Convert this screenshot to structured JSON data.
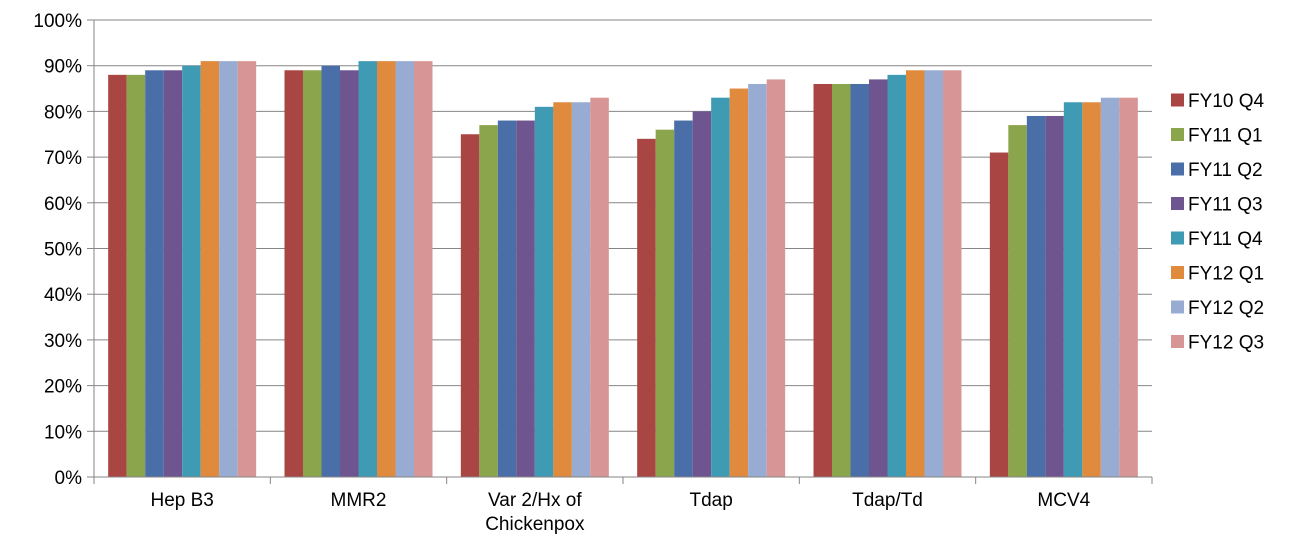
{
  "chart_data": {
    "type": "bar",
    "title": "",
    "xlabel": "",
    "ylabel": "",
    "ylim": [
      0,
      100
    ],
    "y_ticks": [
      "0%",
      "10%",
      "20%",
      "30%",
      "40%",
      "50%",
      "60%",
      "70%",
      "80%",
      "90%",
      "100%"
    ],
    "grid": "horizontal",
    "legend_position": "right",
    "categories": [
      [
        "Hep B3"
      ],
      [
        "MMR2"
      ],
      [
        "Var 2/Hx of",
        "Chickenpox"
      ],
      [
        "Tdap"
      ],
      [
        "Tdap/Td"
      ],
      [
        "MCV4"
      ]
    ],
    "series": [
      {
        "name": "FY10 Q4",
        "color": "#a94543",
        "values": [
          88,
          89,
          75,
          74,
          86,
          71
        ]
      },
      {
        "name": "FY11 Q1",
        "color": "#8aa54b",
        "values": [
          88,
          89,
          77,
          76,
          86,
          77
        ]
      },
      {
        "name": "FY11 Q2",
        "color": "#4a6fa8",
        "values": [
          89,
          90,
          78,
          78,
          86,
          79
        ]
      },
      {
        "name": "FY11 Q3",
        "color": "#6f5590",
        "values": [
          89,
          89,
          78,
          80,
          87,
          79
        ]
      },
      {
        "name": "FY11 Q4",
        "color": "#3e9bb3",
        "values": [
          90,
          91,
          81,
          83,
          88,
          82
        ]
      },
      {
        "name": "FY12 Q1",
        "color": "#df8a3d",
        "values": [
          91,
          91,
          82,
          85,
          89,
          82
        ]
      },
      {
        "name": "FY12 Q2",
        "color": "#98acd3",
        "values": [
          91,
          91,
          82,
          86,
          89,
          83
        ]
      },
      {
        "name": "FY12 Q3",
        "color": "#d89595",
        "values": [
          91,
          91,
          83,
          87,
          89,
          83
        ]
      }
    ]
  }
}
